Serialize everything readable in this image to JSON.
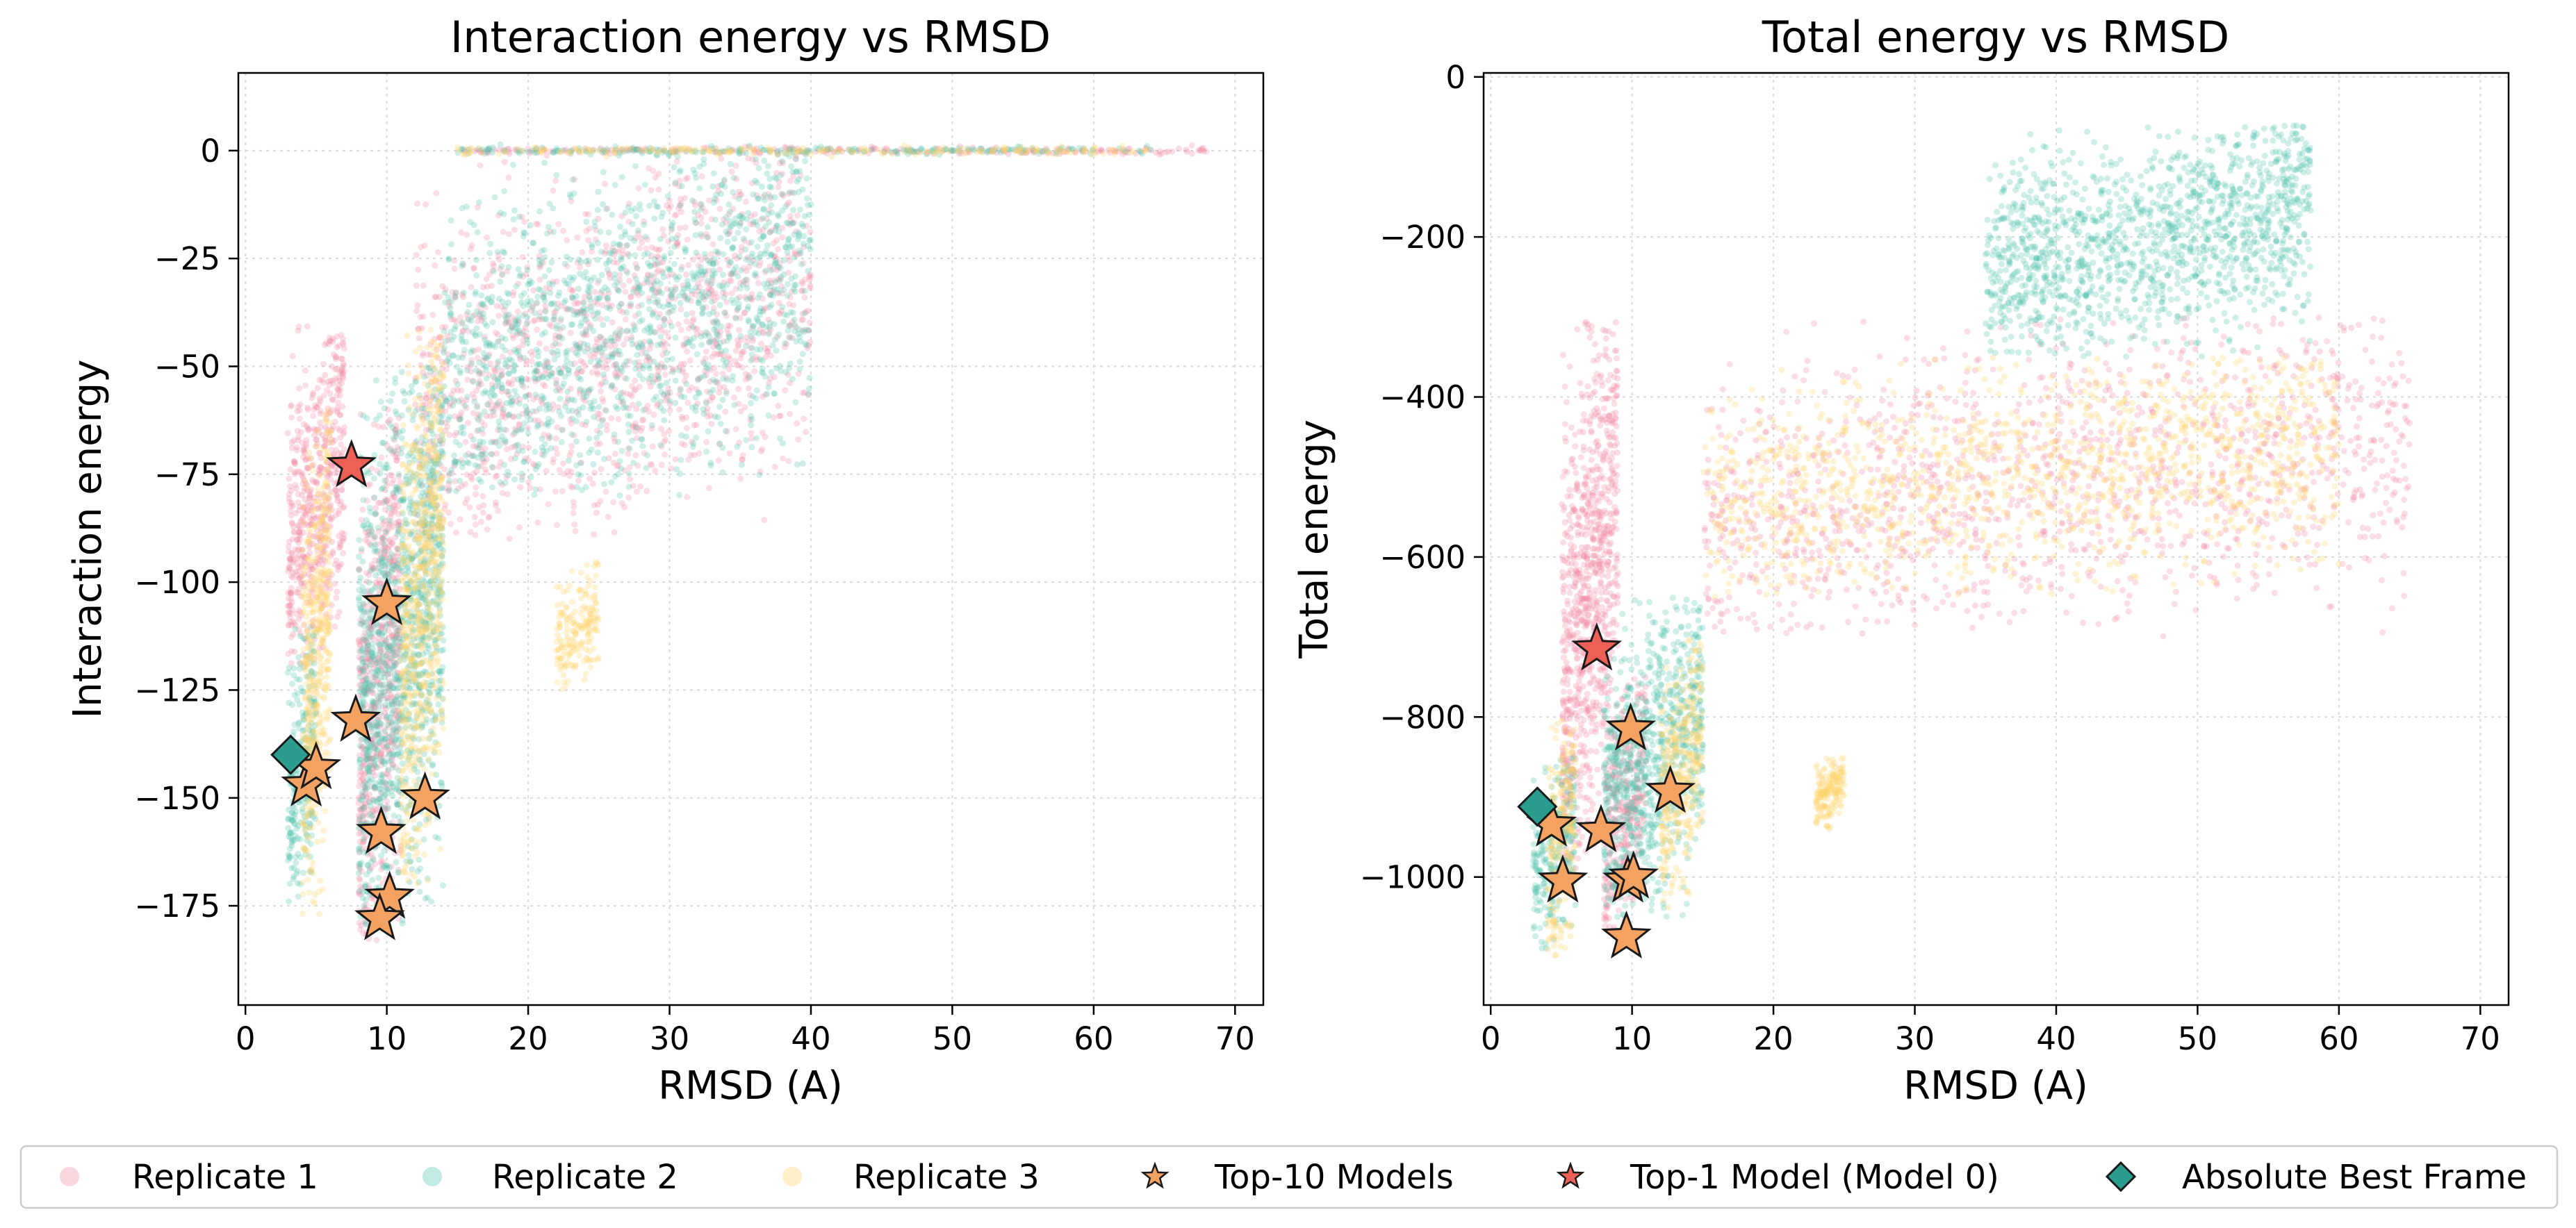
{
  "legend": {
    "placement": "bottom-center",
    "items": [
      {
        "label": "Replicate 1",
        "marker": "circle",
        "color": "#f08aa2"
      },
      {
        "label": "Replicate 2",
        "marker": "circle",
        "color": "#4fc2ae"
      },
      {
        "label": "Replicate 3",
        "marker": "circle",
        "color": "#ffd56b"
      },
      {
        "label": "Top-10 Models",
        "marker": "star-small",
        "color": "#f4a261"
      },
      {
        "label": "Top-1 Model (Model 0)",
        "marker": "star-small",
        "color": "#ee6055"
      },
      {
        "label": "Absolute Best Frame",
        "marker": "diamond",
        "color": "#2a9d8f"
      }
    ]
  },
  "chart_data": [
    {
      "type": "scatter",
      "title": "Interaction energy vs RMSD",
      "xlabel": "RMSD (A)",
      "ylabel": "Interaction energy",
      "xlim": [
        -0.5,
        72
      ],
      "ylim": [
        -198,
        18
      ],
      "xticks": [
        0,
        10,
        20,
        30,
        40,
        50,
        60,
        70
      ],
      "yticks": [
        0,
        -25,
        -50,
        -75,
        -100,
        -125,
        -150,
        -175
      ],
      "xtick_labels": [
        "0",
        "10",
        "20",
        "30",
        "40",
        "50",
        "60",
        "70"
      ],
      "ytick_labels": [
        "0",
        "−25",
        "−50",
        "−75",
        "−100",
        "−125",
        "−150",
        "−175"
      ],
      "grid": true,
      "density_description": "dense semi-transparent point clouds per replicate; plateau at 0 for RMSD 15-68",
      "series": [
        {
          "name": "Replicate 1",
          "color": "#f08aa2",
          "approx_clusters": [
            {
              "x": [
                3,
                7
              ],
              "y": [
                -120,
                -40
              ]
            },
            {
              "x": [
                8,
                11
              ],
              "y": [
                -185,
                -60
              ]
            },
            {
              "x": [
                12,
                40
              ],
              "y": [
                -90,
                0
              ]
            },
            {
              "x": [
                15,
                68
              ],
              "y": [
                0,
                0
              ]
            }
          ]
        },
        {
          "name": "Replicate 2",
          "color": "#4fc2ae",
          "approx_clusters": [
            {
              "x": [
                3,
                5
              ],
              "y": [
                -175,
                -110
              ]
            },
            {
              "x": [
                8,
                14
              ],
              "y": [
                -180,
                -50
              ]
            },
            {
              "x": [
                14,
                40
              ],
              "y": [
                -80,
                0
              ]
            },
            {
              "x": [
                15,
                64
              ],
              "y": [
                0,
                0
              ]
            }
          ]
        },
        {
          "name": "Replicate 3",
          "color": "#ffd56b",
          "approx_clusters": [
            {
              "x": [
                4,
                6
              ],
              "y": [
                -178,
                -60
              ]
            },
            {
              "x": [
                11,
                14
              ],
              "y": [
                -170,
                -40
              ]
            },
            {
              "x": [
                22,
                25
              ],
              "y": [
                -125,
                -95
              ]
            },
            {
              "x": [
                15,
                64
              ],
              "y": [
                0,
                0
              ]
            }
          ]
        },
        {
          "name": "Top-10 Models",
          "color": "#f4a261",
          "points": [
            [
              4.3,
              -147
            ],
            [
              5.0,
              -143
            ],
            [
              7.8,
              -132
            ],
            [
              10.0,
              -105
            ],
            [
              9.6,
              -158
            ],
            [
              10.2,
              -173
            ],
            [
              9.5,
              -178
            ],
            [
              12.7,
              -150
            ]
          ]
        },
        {
          "name": "Top-1 Model (Model 0)",
          "color": "#ee6055",
          "points": [
            [
              7.5,
              -73
            ]
          ]
        },
        {
          "name": "Absolute Best Frame",
          "color": "#2a9d8f",
          "points": [
            [
              3.2,
              -140
            ]
          ]
        }
      ]
    },
    {
      "type": "scatter",
      "title": "Total energy vs RMSD",
      "xlabel": "RMSD (A)",
      "ylabel": "Total energy",
      "xlim": [
        -0.5,
        72
      ],
      "ylim": [
        -1160,
        5
      ],
      "xticks": [
        0,
        10,
        20,
        30,
        40,
        50,
        60,
        70
      ],
      "yticks": [
        0,
        -200,
        -400,
        -600,
        -800,
        -1000
      ],
      "xtick_labels": [
        "0",
        "10",
        "20",
        "30",
        "40",
        "50",
        "60",
        "70"
      ],
      "ytick_labels": [
        "0",
        "−200",
        "−400",
        "−600",
        "−800",
        "−1000"
      ],
      "grid": true,
      "density_description": "dense semi-transparent point clouds; main band from RMSD 5 to 60 rising from -1100 to -400",
      "series": [
        {
          "name": "Replicate 1",
          "color": "#f08aa2",
          "approx_clusters": [
            {
              "x": [
                5,
                9
              ],
              "y": [
                -1000,
                -300
              ]
            },
            {
              "x": [
                8,
                11
              ],
              "y": [
                -1080,
                -750
              ]
            },
            {
              "x": [
                15,
                65
              ],
              "y": [
                -700,
                -300
              ]
            }
          ]
        },
        {
          "name": "Replicate 2",
          "color": "#4fc2ae",
          "approx_clusters": [
            {
              "x": [
                3,
                6
              ],
              "y": [
                -1090,
                -850
              ]
            },
            {
              "x": [
                8,
                15
              ],
              "y": [
                -1050,
                -650
              ]
            },
            {
              "x": [
                35,
                58
              ],
              "y": [
                -350,
                -60
              ]
            }
          ]
        },
        {
          "name": "Replicate 3",
          "color": "#ffd56b",
          "approx_clusters": [
            {
              "x": [
                4,
                6
              ],
              "y": [
                -1100,
                -800
              ]
            },
            {
              "x": [
                12,
                15
              ],
              "y": [
                -1040,
                -700
              ]
            },
            {
              "x": [
                23,
                25
              ],
              "y": [
                -940,
                -850
              ]
            },
            {
              "x": [
                15,
                60
              ],
              "y": [
                -650,
                -350
              ]
            }
          ]
        },
        {
          "name": "Top-10 Models",
          "color": "#f4a261",
          "points": [
            [
              4.3,
              -935
            ],
            [
              5.1,
              -1005
            ],
            [
              7.8,
              -942
            ],
            [
              9.9,
              -815
            ],
            [
              9.7,
              -1005
            ],
            [
              10.1,
              -1000
            ],
            [
              9.6,
              -1075
            ],
            [
              12.7,
              -893
            ]
          ]
        },
        {
          "name": "Top-1 Model (Model 0)",
          "color": "#ee6055",
          "points": [
            [
              7.5,
              -715
            ]
          ]
        },
        {
          "name": "Absolute Best Frame",
          "color": "#2a9d8f",
          "points": [
            [
              3.3,
              -912
            ]
          ]
        }
      ]
    }
  ]
}
